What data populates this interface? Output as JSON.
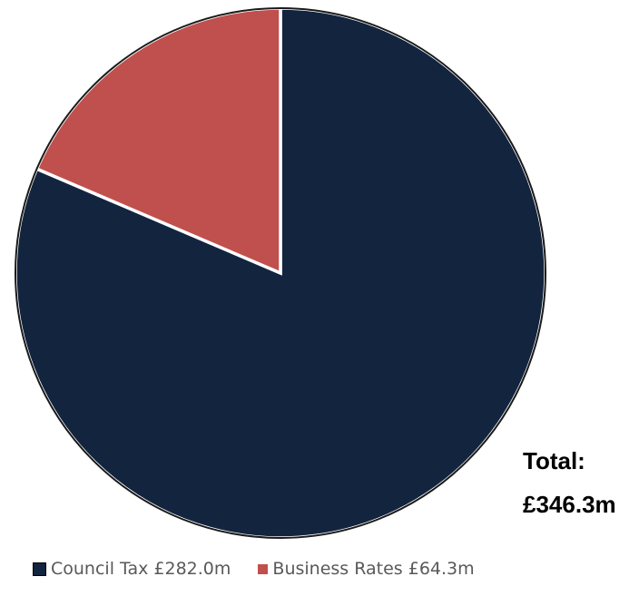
{
  "chart_data": {
    "type": "pie",
    "title": "",
    "series": [
      {
        "values": [
          282.0,
          64.3
        ],
        "categories": [
          "Council Tax",
          "Business Rates"
        ]
      }
    ],
    "slices": [
      {
        "label": "Council Tax",
        "value": 282.0,
        "color": "#13243f"
      },
      {
        "label": "Business Rates",
        "value": 64.3,
        "color": "#c0504d"
      }
    ],
    "legend_placement": "bottom",
    "annotations": [
      "Total:",
      "£346.3m"
    ]
  },
  "legend": {
    "items": [
      {
        "text": "Council Tax £282.0m",
        "color": "#13243f"
      },
      {
        "text": "Business Rates £64.3m",
        "color": "#c0504d"
      }
    ]
  },
  "total": {
    "label": "Total:",
    "value": "£346.3m"
  }
}
